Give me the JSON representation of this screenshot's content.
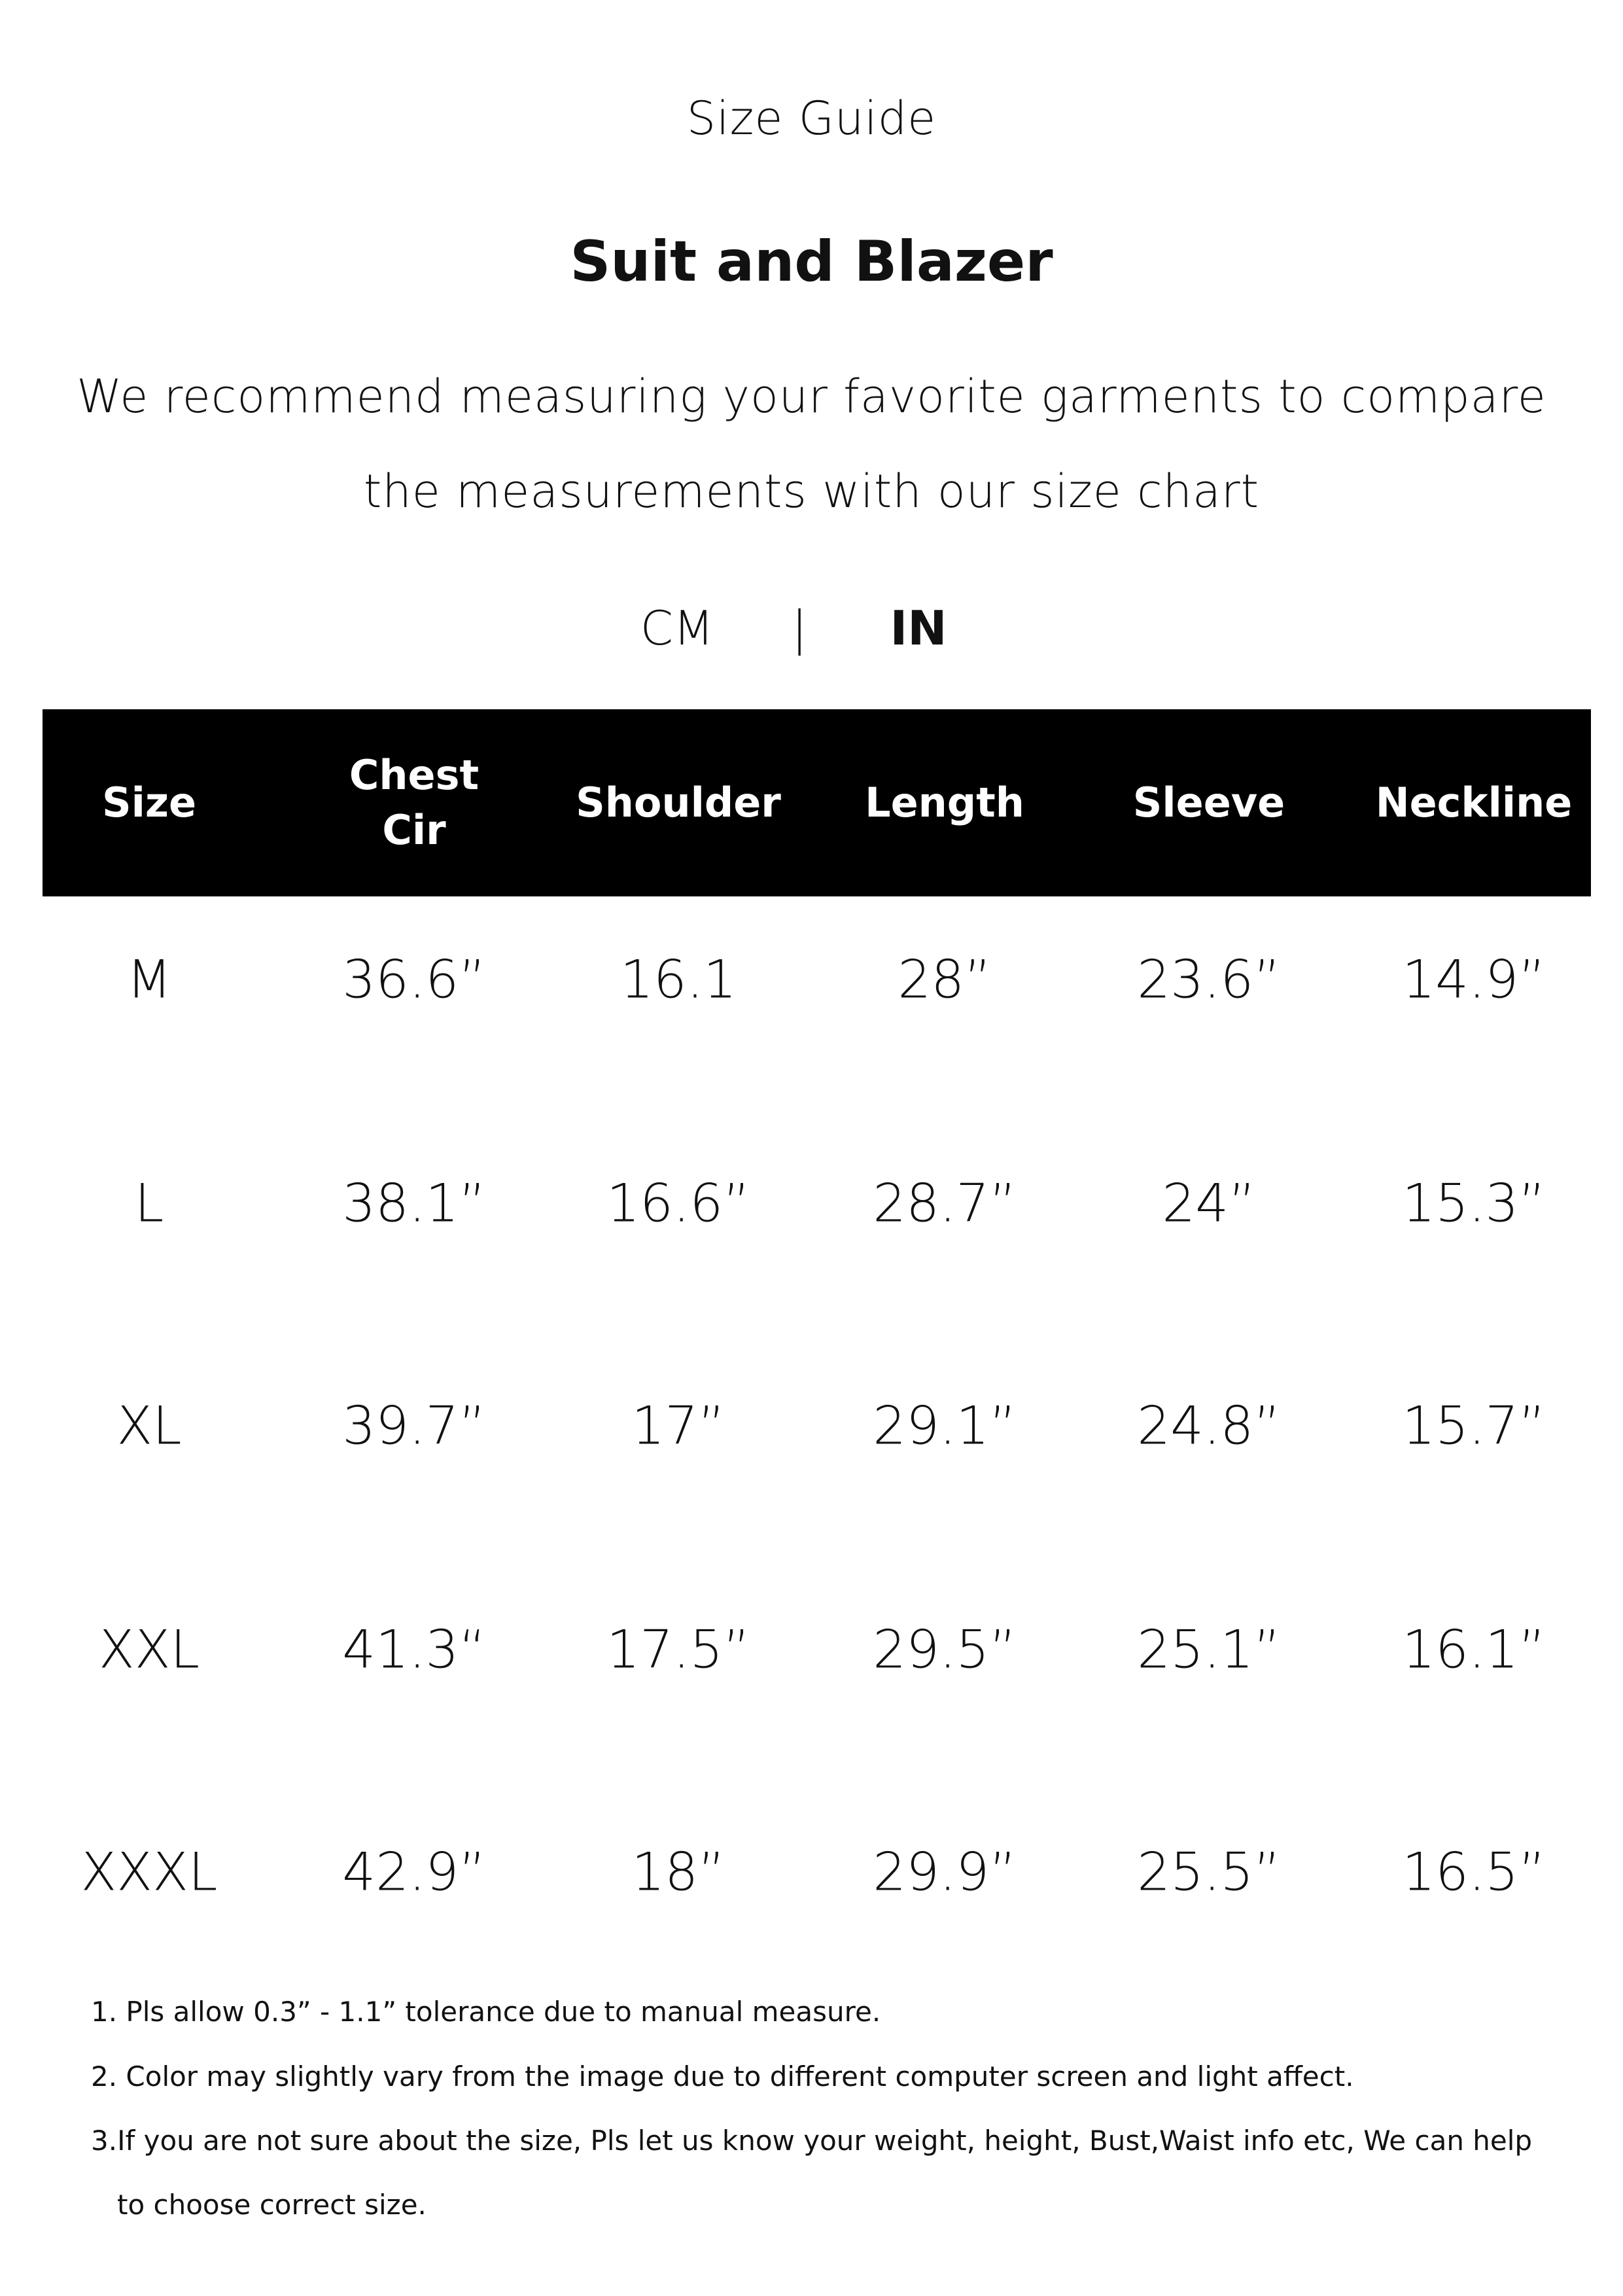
{
  "header": {
    "guide_label": "Size Guide",
    "title": "Suit and Blazer",
    "intro_line1": "We recommend measuring your favorite garments to compare",
    "intro_line2": "the measurements with our size chart"
  },
  "units": {
    "cm": "CM",
    "separator": "|",
    "in": "IN",
    "selected": "IN"
  },
  "table": {
    "headers": [
      "Size",
      "Chest\nCir",
      "Shoulder",
      "Length",
      "Sleeve",
      "Neckline"
    ],
    "rows": [
      [
        "M",
        "36.6”",
        "16.1",
        "28”",
        "23.6”",
        "14.9”"
      ],
      [
        "L",
        "38.1”",
        "16.6”",
        "28.7”",
        "24”",
        "15.3”"
      ],
      [
        "XL",
        "39.7”",
        "17”",
        "29.1”",
        "24.8”",
        "15.7”"
      ],
      [
        "XXL",
        "41.3“",
        "17.5”",
        "29.5”",
        "25.1”",
        "16.1”"
      ],
      [
        "XXXL",
        "42.9”",
        "18”",
        "29.9”",
        "25.5”",
        "16.5”"
      ]
    ]
  },
  "notes": [
    "1. Pls allow 0.3” - 1.1” tolerance due to manual measure.",
    "2. Color may slightly vary from the image due to different computer screen and light affect.",
    "3.If you are not sure about the size, Pls let us know your weight, height, Bust,Waist info etc, We can help",
    "to choose correct size."
  ],
  "colors": {
    "header_bg": "#000000",
    "header_text": "#ffffff",
    "text": "#111111"
  }
}
